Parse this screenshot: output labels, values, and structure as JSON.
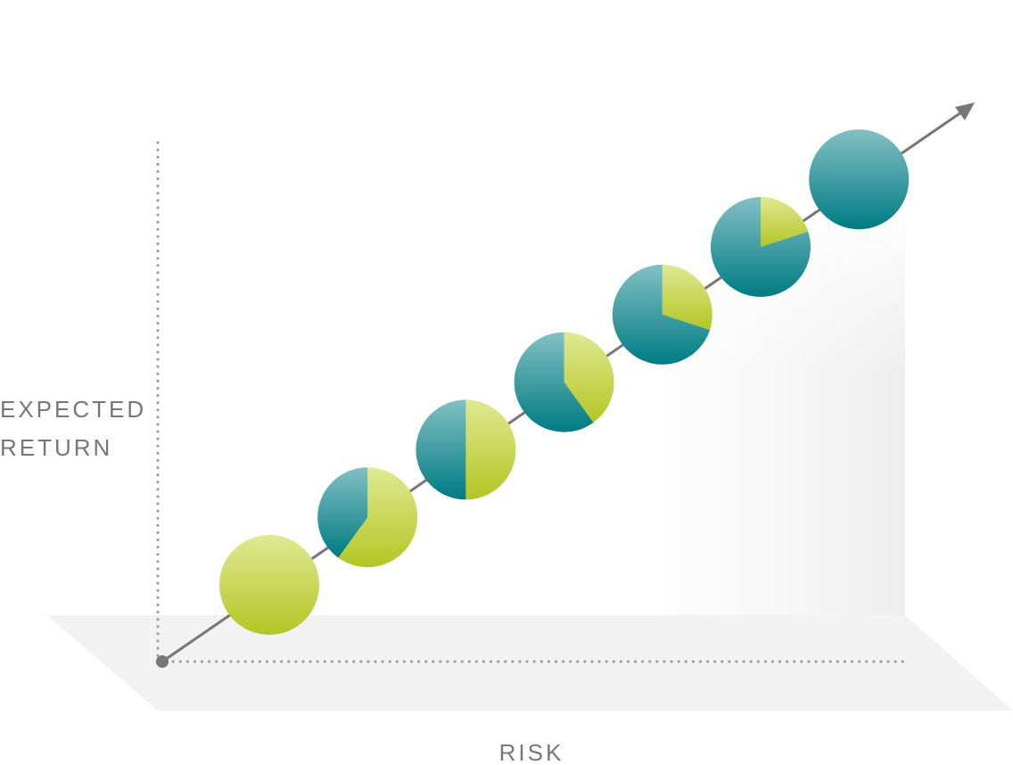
{
  "chart_data": {
    "type": "pie",
    "ylabel": [
      "EXPECTED",
      "RETURN"
    ],
    "xlabel": "RISK",
    "colors": [
      [
        "#dfe993",
        "#b3c624"
      ],
      [
        "#82c0c3",
        "#007b83"
      ]
    ],
    "pies": [
      {
        "values": [
          100,
          0
        ]
      },
      {
        "values": [
          60,
          40
        ]
      },
      {
        "values": [
          50,
          50
        ]
      },
      {
        "values": [
          40,
          60
        ]
      },
      {
        "values": [
          30,
          70
        ]
      },
      {
        "values": [
          20,
          80
        ]
      },
      {
        "values": [
          0,
          100
        ]
      }
    ]
  }
}
